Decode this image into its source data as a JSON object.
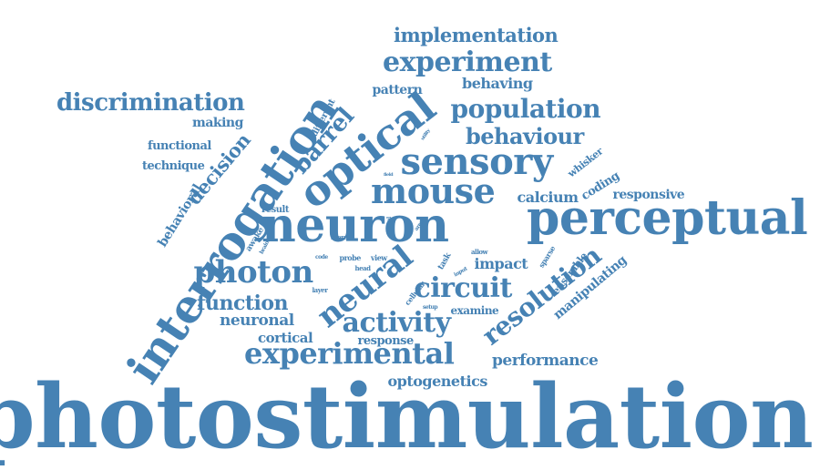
{
  "word_cloud": {
    "text_color": "#4682B4",
    "background": "#ffffff",
    "words": [
      {
        "text": "photostimulation",
        "orientation": "horizontal",
        "weight": 100
      },
      {
        "text": "interrogation",
        "orientation": "diagonal",
        "weight": 62
      },
      {
        "text": "neuron",
        "orientation": "horizontal",
        "weight": 50
      },
      {
        "text": "perceptual",
        "orientation": "horizontal",
        "weight": 50
      },
      {
        "text": "optical",
        "orientation": "diagonal",
        "weight": 42
      },
      {
        "text": "sensory",
        "orientation": "horizontal",
        "weight": 35
      },
      {
        "text": "mouse",
        "orientation": "horizontal",
        "weight": 35
      },
      {
        "text": "neural",
        "orientation": "diagonal",
        "weight": 32
      },
      {
        "text": "experimental",
        "orientation": "horizontal",
        "weight": 30
      },
      {
        "text": "photon",
        "orientation": "horizontal",
        "weight": 30
      },
      {
        "text": "activity",
        "orientation": "horizontal",
        "weight": 28
      },
      {
        "text": "circuit",
        "orientation": "horizontal",
        "weight": 28
      },
      {
        "text": "resolution",
        "orientation": "diagonal",
        "weight": 27
      },
      {
        "text": "experiment",
        "orientation": "horizontal",
        "weight": 25
      },
      {
        "text": "population",
        "orientation": "horizontal",
        "weight": 25
      },
      {
        "text": "discrimination",
        "orientation": "horizontal",
        "weight": 24
      },
      {
        "text": "behaviour",
        "orientation": "horizontal",
        "weight": 24
      },
      {
        "text": "barrel",
        "orientation": "diagonal",
        "weight": 24
      },
      {
        "text": "decision",
        "orientation": "diagonal",
        "weight": 20
      },
      {
        "text": "function",
        "orientation": "horizontal",
        "weight": 20
      },
      {
        "text": "implementation",
        "orientation": "horizontal",
        "weight": 19
      },
      {
        "text": "neuronal",
        "orientation": "horizontal",
        "weight": 16
      },
      {
        "text": "performance",
        "orientation": "horizontal",
        "weight": 16
      },
      {
        "text": "optogenetics",
        "orientation": "horizontal",
        "weight": 15
      },
      {
        "text": "behavioral",
        "orientation": "diagonal",
        "weight": 15
      },
      {
        "text": "behaving",
        "orientation": "horizontal",
        "weight": 15
      },
      {
        "text": "impact",
        "orientation": "horizontal",
        "weight": 15
      },
      {
        "text": "calcium",
        "orientation": "horizontal",
        "weight": 15
      },
      {
        "text": "cortical",
        "orientation": "horizontal",
        "weight": 14
      },
      {
        "text": "manipulating",
        "orientation": "diagonal",
        "weight": 14
      },
      {
        "text": "pattern",
        "orientation": "horizontal",
        "weight": 13
      },
      {
        "text": "functional",
        "orientation": "horizontal",
        "weight": 13
      },
      {
        "text": "technique",
        "orientation": "horizontal",
        "weight": 13
      },
      {
        "text": "making",
        "orientation": "horizontal",
        "weight": 13
      },
      {
        "text": "responsive",
        "orientation": "horizontal",
        "weight": 13
      },
      {
        "text": "response",
        "orientation": "horizontal",
        "weight": 13
      },
      {
        "text": "examine",
        "orientation": "horizontal",
        "weight": 12
      },
      {
        "text": "coding",
        "orientation": "diagonal",
        "weight": 12
      },
      {
        "text": "whisker",
        "orientation": "diagonal",
        "weight": 11
      },
      {
        "text": "ensemble",
        "orientation": "diagonal",
        "weight": 11
      },
      {
        "text": "different",
        "orientation": "diagonal",
        "weight": 10
      },
      {
        "text": "result",
        "orientation": "horizontal",
        "weight": 10
      },
      {
        "text": "awake",
        "orientation": "diagonal",
        "weight": 9
      },
      {
        "text": "task",
        "orientation": "diagonal",
        "weight": 9
      },
      {
        "text": "sparse",
        "orientation": "diagonal",
        "weight": 8
      },
      {
        "text": "probe",
        "orientation": "horizontal",
        "weight": 8
      },
      {
        "text": "view",
        "orientation": "horizontal",
        "weight": 8
      },
      {
        "text": "cellular",
        "orientation": "diagonal",
        "weight": 8
      },
      {
        "text": "layer",
        "orientation": "horizontal",
        "weight": 7
      },
      {
        "text": "more",
        "orientation": "horizontal",
        "weight": 7
      },
      {
        "text": "allow",
        "orientation": "horizontal",
        "weight": 7
      },
      {
        "text": "head",
        "orientation": "horizontal",
        "weight": 7
      },
      {
        "text": "brain",
        "orientation": "diagonal",
        "weight": 6
      },
      {
        "text": "code",
        "orientation": "horizontal",
        "weight": 6
      },
      {
        "text": "local",
        "orientation": "vertical",
        "weight": 6
      },
      {
        "text": "area",
        "orientation": "diagonal",
        "weight": 6
      },
      {
        "text": "input",
        "orientation": "diagonal",
        "weight": 6
      },
      {
        "text": "setup",
        "orientation": "horizontal",
        "weight": 6
      },
      {
        "text": "utility",
        "orientation": "diagonal",
        "weight": 5
      },
      {
        "text": "field",
        "orientation": "horizontal",
        "weight": 5
      }
    ]
  }
}
